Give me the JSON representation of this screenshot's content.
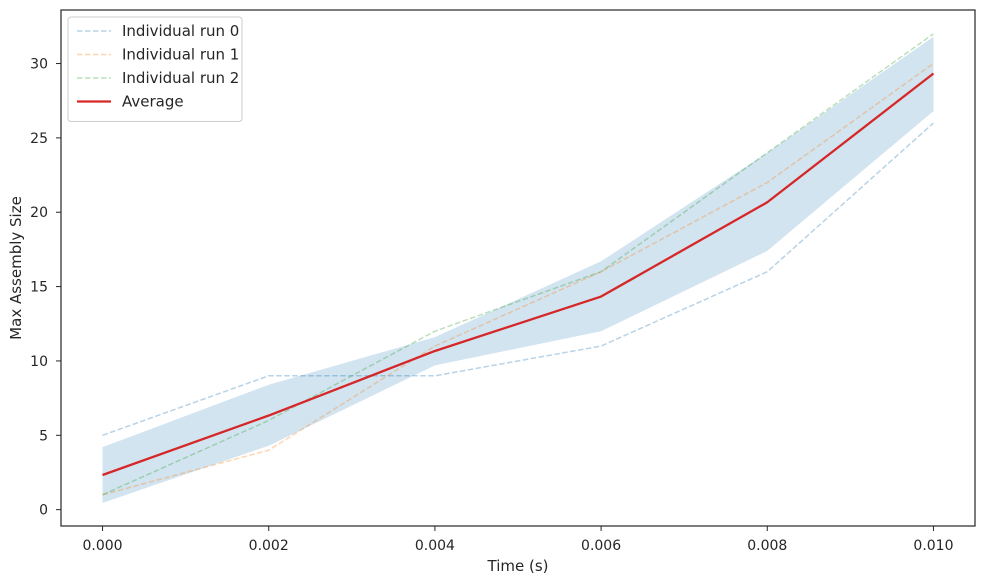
{
  "chart_data": {
    "type": "line",
    "title": "",
    "xlabel": "Time (s)",
    "ylabel": "Max Assembly Size",
    "xlim": [
      -0.0005,
      0.0105
    ],
    "ylim": [
      -1.1,
      33.6
    ],
    "x": [
      0.0,
      0.002,
      0.004,
      0.006,
      0.008,
      0.01
    ],
    "x_tick_values": [
      0.0,
      0.002,
      0.004,
      0.006,
      0.008,
      0.01
    ],
    "x_tick_labels": [
      "0.000",
      "0.002",
      "0.004",
      "0.006",
      "0.008",
      "0.010"
    ],
    "y_tick_values": [
      0,
      5,
      10,
      15,
      20,
      25,
      30
    ],
    "y_tick_labels": [
      "0",
      "5",
      "10",
      "15",
      "20",
      "25",
      "30"
    ],
    "grid": false,
    "legend_position": "top-left",
    "series": [
      {
        "name": "Individual run 0",
        "style": "dashed",
        "color": "#1f77b4",
        "values": [
          5,
          9,
          9,
          11,
          16,
          26
        ]
      },
      {
        "name": "Individual run 1",
        "style": "dashed",
        "color": "#ff7f0e",
        "values": [
          1,
          4,
          11,
          16,
          22,
          30
        ]
      },
      {
        "name": "Individual run 2",
        "style": "dashed",
        "color": "#2ca02c",
        "values": [
          1,
          6,
          12,
          16,
          24,
          32
        ]
      },
      {
        "name": "Average",
        "style": "solid",
        "color": "#d62728",
        "values": [
          2.33,
          6.33,
          10.67,
          14.33,
          20.67,
          29.33
        ]
      }
    ],
    "band": {
      "color": "#1f77b4",
      "lower": [
        0.45,
        4.3,
        9.7,
        12.0,
        17.4,
        26.8
      ],
      "upper": [
        4.2,
        8.4,
        11.6,
        16.7,
        24.0,
        31.8
      ]
    }
  }
}
